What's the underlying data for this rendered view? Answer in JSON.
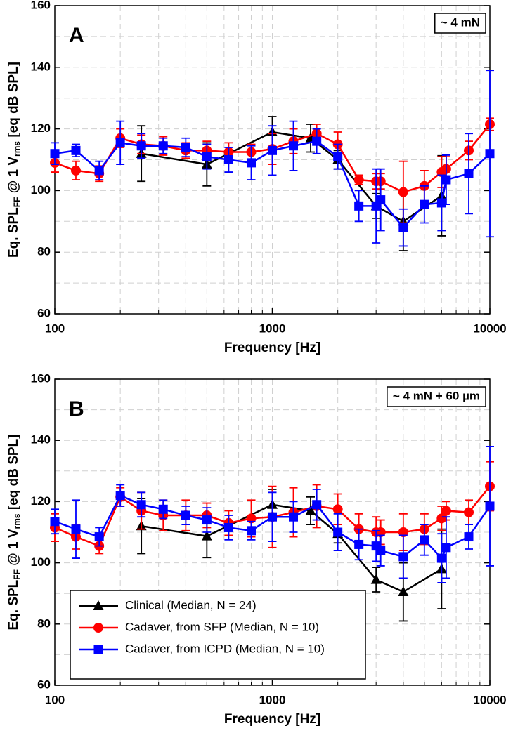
{
  "chart_data": [
    {
      "type": "line",
      "panel_label": "A",
      "annotation": "~ 4 mN",
      "xlabel": "Frequency [Hz]",
      "ylabel": [
        "Eq. SPL",
        "FF",
        " @ 1 V",
        "rms",
        " [eq dB SPL]"
      ],
      "xscale": "log",
      "xlim": [
        100,
        10000
      ],
      "xticks": [
        100,
        1000,
        10000
      ],
      "xminorticks": [
        200,
        300,
        400,
        500,
        600,
        700,
        800,
        900,
        2000,
        3000,
        4000,
        5000,
        6000,
        7000,
        8000,
        9000
      ],
      "ylim": [
        60,
        160
      ],
      "yticks": [
        60,
        80,
        100,
        120,
        140,
        160
      ],
      "yminorticks": [
        70,
        90,
        110,
        130,
        150
      ],
      "grid": true,
      "series": [
        {
          "color": "#000000",
          "marker": "triangle",
          "x": [
            250,
            500,
            1000,
            1500,
            2000,
            3000,
            4000,
            6000
          ],
          "values": [
            112,
            108.5,
            119,
            117,
            110,
            95,
            90,
            98.3
          ],
          "errors": [
            9,
            7,
            5,
            4.5,
            3,
            4,
            9.5,
            13
          ]
        },
        {
          "color": "#ff0000",
          "marker": "circle",
          "x": [
            100,
            125,
            160,
            200,
            250,
            315,
            400,
            500,
            630,
            800,
            1000,
            1250,
            1600,
            2000,
            2500,
            3000,
            3150,
            4000,
            5000,
            6000,
            6300,
            8000,
            10000
          ],
          "values": [
            109,
            106.5,
            105.5,
            117,
            115,
            114.5,
            113,
            113,
            112.5,
            112.5,
            113.5,
            116,
            118.5,
            115,
            103.5,
            103,
            103,
            99.5,
            101.5,
            106,
            107,
            113,
            121.5
          ],
          "errors": [
            3,
            3,
            2.5,
            3,
            3,
            3,
            2.5,
            3,
            3,
            2.5,
            5,
            4,
            3,
            4,
            1.5,
            2.5,
            2.5,
            10,
            5,
            5,
            4,
            3,
            2
          ]
        },
        {
          "color": "#0000ff",
          "marker": "square",
          "x": [
            100,
            125,
            160,
            200,
            250,
            315,
            400,
            500,
            630,
            800,
            1000,
            1250,
            1600,
            2000,
            2500,
            3000,
            3150,
            4000,
            5000,
            6000,
            6300,
            8000,
            10000
          ],
          "values": [
            112,
            113,
            106.5,
            115.5,
            114.5,
            114.5,
            114,
            111,
            110,
            109,
            113,
            114.5,
            116,
            111,
            95,
            95,
            97,
            88,
            95.5,
            96,
            103.5,
            105.5,
            112
          ],
          "errors": [
            3.5,
            2,
            3,
            7,
            4,
            2.5,
            3,
            4,
            4,
            5.5,
            8,
            8,
            4,
            4,
            5,
            12,
            10,
            6,
            6,
            9,
            8,
            13,
            27
          ]
        }
      ]
    },
    {
      "type": "line",
      "panel_label": "B",
      "annotation": "~ 4 mN + 60 µm",
      "xlabel": "Frequency [Hz]",
      "ylabel": [
        "Eq. SPL",
        "FF",
        " @ 1 V",
        "rms",
        " [eq dB SPL]"
      ],
      "xscale": "log",
      "xlim": [
        100,
        10000
      ],
      "xticks": [
        100,
        1000,
        10000
      ],
      "xminorticks": [
        200,
        300,
        400,
        500,
        600,
        700,
        800,
        900,
        2000,
        3000,
        4000,
        5000,
        6000,
        7000,
        8000,
        9000
      ],
      "ylim": [
        60,
        160
      ],
      "yticks": [
        60,
        80,
        100,
        120,
        140,
        160
      ],
      "yminorticks": [
        70,
        90,
        110,
        130,
        150
      ],
      "grid": true,
      "legend": "lower left",
      "series": [
        {
          "name": "Clinical (Median, N = 24)",
          "color": "#000000",
          "marker": "triangle",
          "x": [
            250,
            500,
            1000,
            1500,
            2000,
            3000,
            4000,
            6000
          ],
          "values": [
            112,
            108.7,
            119,
            117,
            109.5,
            94.5,
            90.5,
            98
          ],
          "errors": [
            9,
            7,
            5,
            4.5,
            3,
            4,
            9.5,
            13
          ]
        },
        {
          "name": "Cadaver, from SFP (Median, N = 10)",
          "color": "#ff0000",
          "marker": "circle",
          "x": [
            100,
            125,
            160,
            200,
            250,
            315,
            400,
            500,
            630,
            800,
            1000,
            1250,
            1600,
            2000,
            2500,
            3000,
            3150,
            4000,
            5000,
            6000,
            6300,
            8000,
            10000
          ],
          "values": [
            111.5,
            108.5,
            105.5,
            121.5,
            117,
            115.5,
            115.5,
            115.5,
            113,
            114.5,
            115,
            116.5,
            118.5,
            117.5,
            111,
            110,
            110,
            110,
            111,
            114.5,
            117,
            116.5,
            125
          ],
          "errors": [
            4.5,
            4,
            2.5,
            3,
            6,
            5,
            5,
            4,
            4,
            6,
            10,
            8,
            7,
            5,
            5,
            5,
            4,
            6,
            5,
            4,
            3,
            4,
            8
          ]
        },
        {
          "name": "Cadaver, from ICPD (Median, N = 10)",
          "color": "#0000ff",
          "marker": "square",
          "x": [
            100,
            125,
            160,
            200,
            250,
            315,
            400,
            500,
            630,
            800,
            1000,
            1250,
            1600,
            2000,
            2500,
            3000,
            3150,
            4000,
            5000,
            6000,
            6300,
            8000,
            10000
          ],
          "values": [
            113.5,
            111,
            108.5,
            122,
            119,
            117.5,
            115.5,
            114,
            111.5,
            110.5,
            115,
            115,
            119,
            110,
            106,
            105.5,
            104,
            102,
            107.5,
            101.5,
            105,
            108.5,
            118.5
          ],
          "errors": [
            4,
            9.5,
            3,
            3.5,
            4,
            3,
            3,
            4,
            4,
            3,
            8,
            5,
            5,
            6,
            5,
            5,
            5,
            7,
            5,
            8,
            10,
            4,
            19.5
          ]
        }
      ]
    }
  ]
}
